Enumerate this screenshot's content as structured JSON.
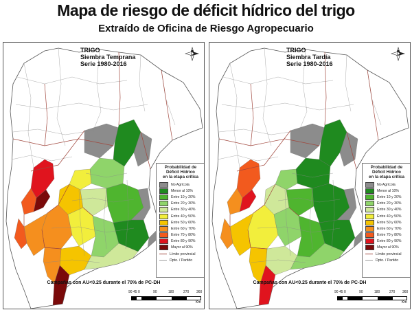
{
  "header": {
    "title": "Mapa de riesgo de déficit hídrico del trigo",
    "subtitle": "Extraído de Oficina de Riesgo Agropecuario"
  },
  "panels": [
    {
      "id": "temprana",
      "title_lines": [
        "TRIGO",
        "Siembra Temprana",
        "Serie 1980-2016"
      ],
      "caption": "Campañas con AU<0.25 durante el 70% de PC-DH"
    },
    {
      "id": "tardia",
      "title_lines": [
        "TRIGO",
        "Siembra Tardía",
        "Serie 1980-2016"
      ],
      "caption": "Campañas con AU<0.25 durante el 70% de PC-DH"
    }
  ],
  "legend": {
    "title_lines": [
      "Probabilidad de",
      "Déficit Hídrico",
      "en la etapa crítica"
    ],
    "classes": [
      {
        "label": "No Agrícola",
        "color": "#8c8c8c"
      },
      {
        "label": "Menor al 10%",
        "color": "#1f8a1f"
      },
      {
        "label": "Entre 10 y 20%",
        "color": "#4fb52f"
      },
      {
        "label": "Entre 20 y 30%",
        "color": "#8fd46a"
      },
      {
        "label": "Entre 30 y 40%",
        "color": "#cfe89a"
      },
      {
        "label": "Entre 40 y 50%",
        "color": "#f2ee3c"
      },
      {
        "label": "Entre 50 y 60%",
        "color": "#f5c400"
      },
      {
        "label": "Entre 60 y 70%",
        "color": "#f58f1e"
      },
      {
        "label": "Entre 70 y 80%",
        "color": "#f25a1e"
      },
      {
        "label": "Entre 80 y 90%",
        "color": "#e0141e"
      },
      {
        "label": "Mayor al 90%",
        "color": "#7a0a0a"
      }
    ],
    "boundaries": [
      {
        "label": "Límite provincial",
        "color": "#a0463c"
      },
      {
        "label": "Dpto. / Partido",
        "color": "#999999"
      }
    ]
  },
  "scale": {
    "ticks": [
      "90",
      "45",
      "0",
      "90",
      "180",
      "270",
      "360"
    ],
    "unit": "Km"
  },
  "north_label": "N"
}
